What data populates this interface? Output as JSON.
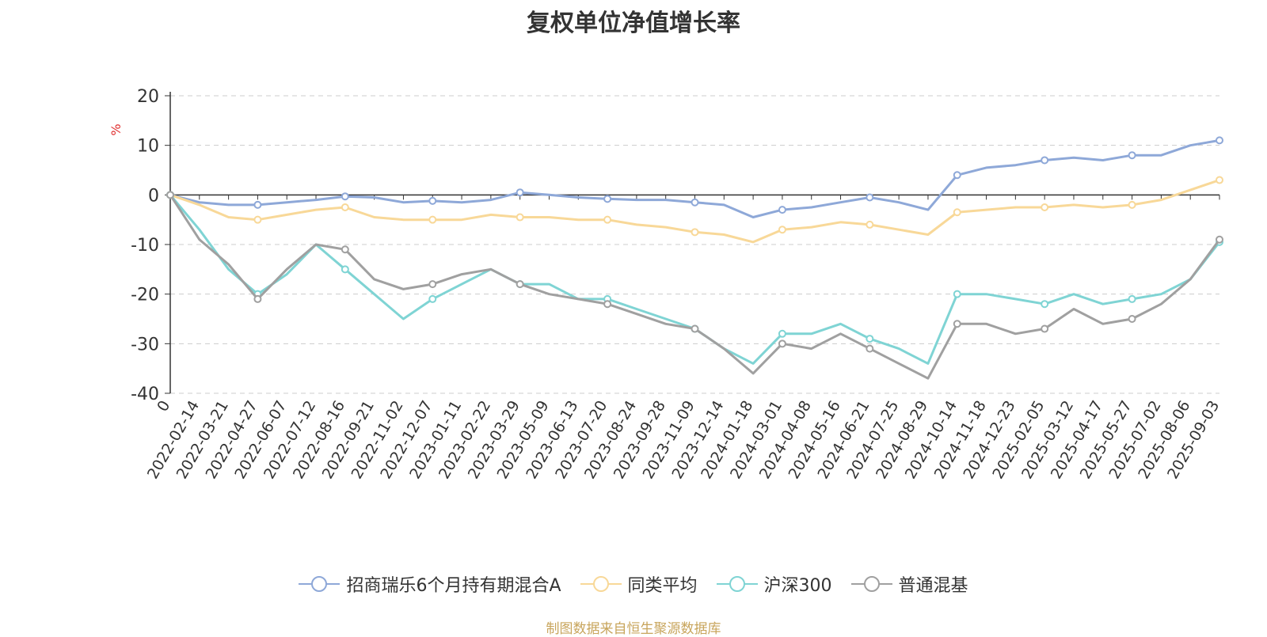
{
  "title": "复权单位净值增长率",
  "footer": "制图数据来自恒生聚源数据库",
  "chart_data": {
    "type": "line",
    "title": "复权单位净值增长率",
    "ylabel": "%",
    "ylim": [
      -40,
      20
    ],
    "yticks": [
      -40,
      -30,
      -20,
      -10,
      0,
      10,
      20
    ],
    "grid": "horizontal-dashed",
    "legend": "bottom",
    "x_tick_labels": [
      "0",
      "2022-02-14",
      "2022-03-21",
      "2022-04-27",
      "2022-06-07",
      "2022-07-12",
      "2022-08-16",
      "2022-09-21",
      "2022-11-02",
      "2022-12-07",
      "2023-01-11",
      "2023-02-22",
      "2023-03-29",
      "2023-05-09",
      "2023-06-13",
      "2023-07-20",
      "2023-08-24",
      "2023-09-28",
      "2023-11-09",
      "2023-12-14",
      "2024-01-18",
      "2024-03-01",
      "2024-04-08",
      "2024-05-16",
      "2024-06-21",
      "2024-07-25",
      "2024-08-29",
      "2024-10-14",
      "2024-11-18",
      "2024-12-23",
      "2025-02-05",
      "2025-03-12",
      "2025-04-17",
      "2025-05-27",
      "2025-07-02",
      "2025-08-06",
      "2025-09-03"
    ],
    "series": [
      {
        "name": "招商瑞乐6个月持有期混合A",
        "color": "#8ea8d8",
        "values": [
          0,
          -1.5,
          -2,
          -2,
          -1.5,
          -1,
          -0.3,
          -0.5,
          -1.5,
          -1.2,
          -1.5,
          -1,
          0.5,
          0,
          -0.5,
          -0.8,
          -1,
          -1,
          -1.5,
          -2,
          -4.5,
          -3,
          -2.5,
          -1.5,
          -0.5,
          -1.5,
          -3,
          4,
          5.5,
          6,
          7,
          7.5,
          7,
          8,
          8,
          10,
          11
        ]
      },
      {
        "name": "同类平均",
        "color": "#f8d898",
        "values": [
          0,
          -2,
          -4.5,
          -5,
          -4,
          -3,
          -2.5,
          -4.5,
          -5,
          -5,
          -5,
          -4,
          -4.5,
          -4.5,
          -5,
          -5,
          -6,
          -6.5,
          -7.5,
          -8,
          -9.5,
          -7,
          -6.5,
          -5.5,
          -6,
          -7,
          -8,
          -3.5,
          -3,
          -2.5,
          -2.5,
          -2,
          -2.5,
          -2,
          -1,
          1,
          3
        ]
      },
      {
        "name": "沪深300",
        "color": "#7fd4d4",
        "values": [
          0,
          -7,
          -15,
          -20,
          -16,
          -10,
          -15,
          -20,
          -25,
          -21,
          -18,
          -15,
          -18,
          -18,
          -21,
          -21,
          -23,
          -25,
          -27,
          -31,
          -34,
          -28,
          -28,
          -26,
          -29,
          -31,
          -34,
          -20,
          -20,
          -21,
          -22,
          -20,
          -22,
          -21,
          -20,
          -17,
          -9.5
        ]
      },
      {
        "name": "普通混基",
        "color": "#a0a0a0",
        "values": [
          0,
          -9,
          -14,
          -21,
          -15,
          -10,
          -11,
          -17,
          -19,
          -18,
          -16,
          -15,
          -18,
          -20,
          -21,
          -22,
          -24,
          -26,
          -27,
          -31,
          -36,
          -30,
          -31,
          -28,
          -31,
          -34,
          -37,
          -26,
          -26,
          -28,
          -27,
          -23,
          -26,
          -25,
          -22,
          -17,
          -9
        ]
      }
    ]
  }
}
